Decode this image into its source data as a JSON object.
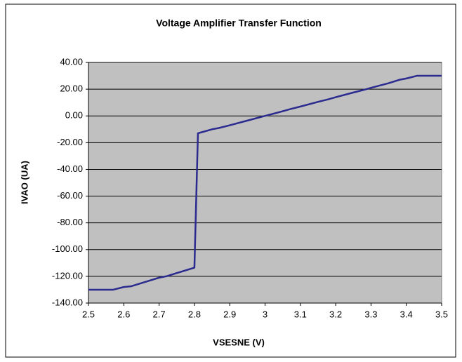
{
  "chart_data": {
    "type": "line",
    "title": "Voltage Amplifier Transfer Function",
    "x_label": "VSESNE (V)",
    "y_label": "IVAO (UA)",
    "x": [
      2.5,
      2.57,
      2.6,
      2.62,
      2.7,
      2.72,
      2.8,
      2.81,
      2.85,
      2.87,
      2.9,
      2.95,
      3.0,
      3.05,
      3.07,
      3.1,
      3.15,
      3.18,
      3.2,
      3.25,
      3.28,
      3.3,
      3.35,
      3.38,
      3.4,
      3.43,
      3.5
    ],
    "series": [
      {
        "name": "IVAO",
        "color": "#2b2b8f",
        "values": [
          -130,
          -130,
          -128,
          -127.5,
          -121,
          -120,
          -113.5,
          -13,
          -10,
          -9,
          -7,
          -3.5,
          0,
          3.5,
          5,
          7,
          10.5,
          12.5,
          14,
          17.5,
          19.5,
          21,
          24.5,
          27,
          28,
          30,
          30
        ]
      }
    ],
    "xlim": [
      2.5,
      3.5
    ],
    "xticks": [
      2.5,
      2.6,
      2.7,
      2.8,
      2.9,
      3,
      3.1,
      3.2,
      3.3,
      3.4,
      3.5
    ],
    "ylim": [
      -140,
      40
    ],
    "yticks": [
      {
        "value": -140,
        "label": "-140.00"
      },
      {
        "value": -120,
        "label": "-120.00"
      },
      {
        "value": -100,
        "label": "-100.00"
      },
      {
        "value": -80,
        "label": "-80.00"
      },
      {
        "value": -60,
        "label": "-60.00"
      },
      {
        "value": -40,
        "label": "-40.00"
      },
      {
        "value": -20,
        "label": "-20.00"
      },
      {
        "value": 0,
        "label": "0.00"
      },
      {
        "value": 20,
        "label": "20.00"
      },
      {
        "value": 40,
        "label": "40.00"
      }
    ],
    "grid": true,
    "plot_background": "#c0c0c0"
  }
}
